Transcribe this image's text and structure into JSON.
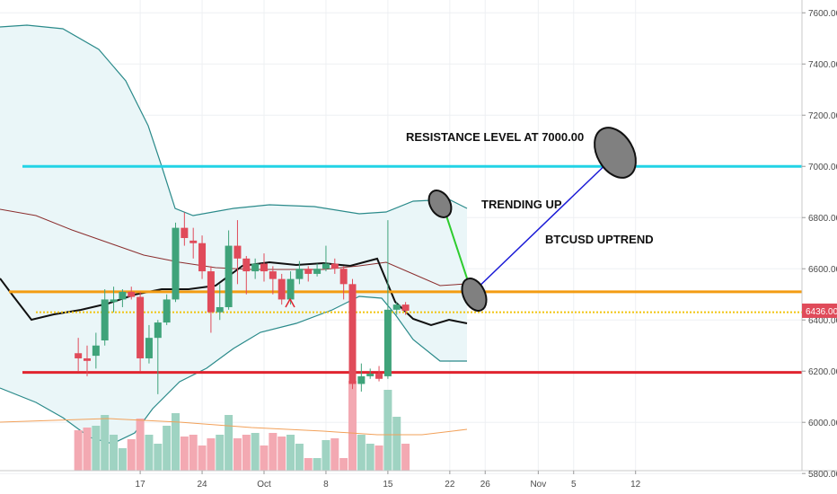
{
  "chart_data": {
    "type": "candlestick",
    "symbol": "BTCUSD",
    "ylim": [
      5720,
      7650
    ],
    "y_ticks": [
      5800,
      6000,
      6200,
      6400,
      6600,
      6800,
      7000,
      7200,
      7400,
      7600
    ],
    "y_tick_labels": [
      "5800.00",
      "6000.00",
      "6200.00",
      "6400.00",
      "6600.00",
      "6800.00",
      "7000.00",
      "7200.00",
      "7400.00",
      "7600.00"
    ],
    "x_range": [
      "2018-09-09",
      "2018-11-12"
    ],
    "x_ticks": [
      {
        "date": "2018-09-17",
        "label": "17"
      },
      {
        "date": "2018-09-24",
        "label": "24"
      },
      {
        "date": "2018-10-01",
        "label": "Oct"
      },
      {
        "date": "2018-10-08",
        "label": "8"
      },
      {
        "date": "2018-10-15",
        "label": "15"
      },
      {
        "date": "2018-10-22",
        "label": "22"
      },
      {
        "date": "2018-10-26",
        "label": "26"
      },
      {
        "date": "2018-11-01",
        "label": "Nov"
      },
      {
        "date": "2018-11-05",
        "label": "5"
      },
      {
        "date": "2018-11-12",
        "label": "12"
      }
    ],
    "candles": [
      {
        "date": "2018-09-10",
        "o": 6270,
        "h": 6330,
        "l": 6200,
        "c": 6250
      },
      {
        "date": "2018-09-11",
        "o": 6250,
        "h": 6300,
        "l": 6180,
        "c": 6240
      },
      {
        "date": "2018-09-12",
        "o": 6260,
        "h": 6350,
        "l": 6210,
        "c": 6300
      },
      {
        "date": "2018-09-13",
        "o": 6320,
        "h": 6520,
        "l": 6300,
        "c": 6480
      },
      {
        "date": "2018-09-14",
        "o": 6470,
        "h": 6530,
        "l": 6430,
        "c": 6480
      },
      {
        "date": "2018-09-15",
        "o": 6480,
        "h": 6520,
        "l": 6450,
        "c": 6510
      },
      {
        "date": "2018-09-16",
        "o": 6510,
        "h": 6530,
        "l": 6480,
        "c": 6490
      },
      {
        "date": "2018-09-17",
        "o": 6490,
        "h": 6510,
        "l": 6200,
        "c": 6250
      },
      {
        "date": "2018-09-18",
        "o": 6250,
        "h": 6380,
        "l": 6230,
        "c": 6330
      },
      {
        "date": "2018-09-19",
        "o": 6330,
        "h": 6400,
        "l": 6110,
        "c": 6390
      },
      {
        "date": "2018-09-20",
        "o": 6390,
        "h": 6500,
        "l": 6380,
        "c": 6480
      },
      {
        "date": "2018-09-21",
        "o": 6480,
        "h": 6780,
        "l": 6470,
        "c": 6760
      },
      {
        "date": "2018-09-22",
        "o": 6760,
        "h": 6820,
        "l": 6690,
        "c": 6720
      },
      {
        "date": "2018-09-23",
        "o": 6710,
        "h": 6760,
        "l": 6640,
        "c": 6700
      },
      {
        "date": "2018-09-24",
        "o": 6700,
        "h": 6730,
        "l": 6560,
        "c": 6590
      },
      {
        "date": "2018-09-25",
        "o": 6590,
        "h": 6610,
        "l": 6350,
        "c": 6430
      },
      {
        "date": "2018-09-26",
        "o": 6430,
        "h": 6540,
        "l": 6400,
        "c": 6450
      },
      {
        "date": "2018-09-27",
        "o": 6450,
        "h": 6750,
        "l": 6440,
        "c": 6690
      },
      {
        "date": "2018-09-28",
        "o": 6690,
        "h": 6790,
        "l": 6540,
        "c": 6640
      },
      {
        "date": "2018-09-29",
        "o": 6640,
        "h": 6650,
        "l": 6500,
        "c": 6590
      },
      {
        "date": "2018-09-30",
        "o": 6590,
        "h": 6640,
        "l": 6560,
        "c": 6620
      },
      {
        "date": "2018-10-01",
        "o": 6620,
        "h": 6660,
        "l": 6550,
        "c": 6590
      },
      {
        "date": "2018-10-02",
        "o": 6590,
        "h": 6610,
        "l": 6500,
        "c": 6560
      },
      {
        "date": "2018-10-03",
        "o": 6560,
        "h": 6580,
        "l": 6460,
        "c": 6480
      },
      {
        "date": "2018-10-04",
        "o": 6480,
        "h": 6590,
        "l": 6460,
        "c": 6560
      },
      {
        "date": "2018-10-05",
        "o": 6560,
        "h": 6630,
        "l": 6540,
        "c": 6600
      },
      {
        "date": "2018-10-06",
        "o": 6600,
        "h": 6610,
        "l": 6550,
        "c": 6580
      },
      {
        "date": "2018-10-07",
        "o": 6580,
        "h": 6620,
        "l": 6570,
        "c": 6600
      },
      {
        "date": "2018-10-08",
        "o": 6600,
        "h": 6690,
        "l": 6590,
        "c": 6620
      },
      {
        "date": "2018-10-09",
        "o": 6620,
        "h": 6640,
        "l": 6580,
        "c": 6600
      },
      {
        "date": "2018-10-10",
        "o": 6600,
        "h": 6610,
        "l": 6480,
        "c": 6540
      },
      {
        "date": "2018-10-11",
        "o": 6540,
        "h": 6560,
        "l": 6130,
        "c": 6150
      },
      {
        "date": "2018-10-12",
        "o": 6150,
        "h": 6230,
        "l": 6120,
        "c": 6180
      },
      {
        "date": "2018-10-13",
        "o": 6180,
        "h": 6210,
        "l": 6170,
        "c": 6190
      },
      {
        "date": "2018-10-14",
        "o": 6190,
        "h": 6220,
        "l": 6160,
        "c": 6170
      },
      {
        "date": "2018-10-15",
        "o": 6180,
        "h": 6790,
        "l": 6170,
        "c": 6440
      },
      {
        "date": "2018-10-16",
        "o": 6440,
        "h": 6470,
        "l": 6420,
        "c": 6460
      },
      {
        "date": "2018-10-17",
        "o": 6460,
        "h": 6470,
        "l": 6420,
        "c": 6436
      }
    ],
    "last_price": 6436.0,
    "last_price_label": "6436.00",
    "annotations": [
      {
        "text": "RESISTANCE LEVEL AT 7000.00",
        "date": "2018-10-15",
        "y": 7060
      },
      {
        "text": "TRENDING UP",
        "date": "2018-10-19",
        "y": 6790
      },
      {
        "text": "BTCUSD UPTREND",
        "date": "2018-10-23",
        "y": 6650
      }
    ],
    "horizontal_levels": [
      {
        "y": 7000,
        "color": "#22d3e6"
      },
      {
        "y": 6510,
        "color": "#f39c12"
      },
      {
        "y": 6430,
        "color": "#f1c40f"
      },
      {
        "y": 6195,
        "color": "#e0242f"
      }
    ],
    "colors": {
      "up": "#3fa37a",
      "down": "#e04b5a",
      "volume_up": "#9fd3c2",
      "volume_down": "#f3a9b2",
      "band": "#2a8a8a",
      "band_fill": "#eaf6f8",
      "ma": "#111111",
      "midline": "#8b2e2e",
      "arrow": "#1a1ad6",
      "green_line": "#2ecc2e"
    }
  }
}
